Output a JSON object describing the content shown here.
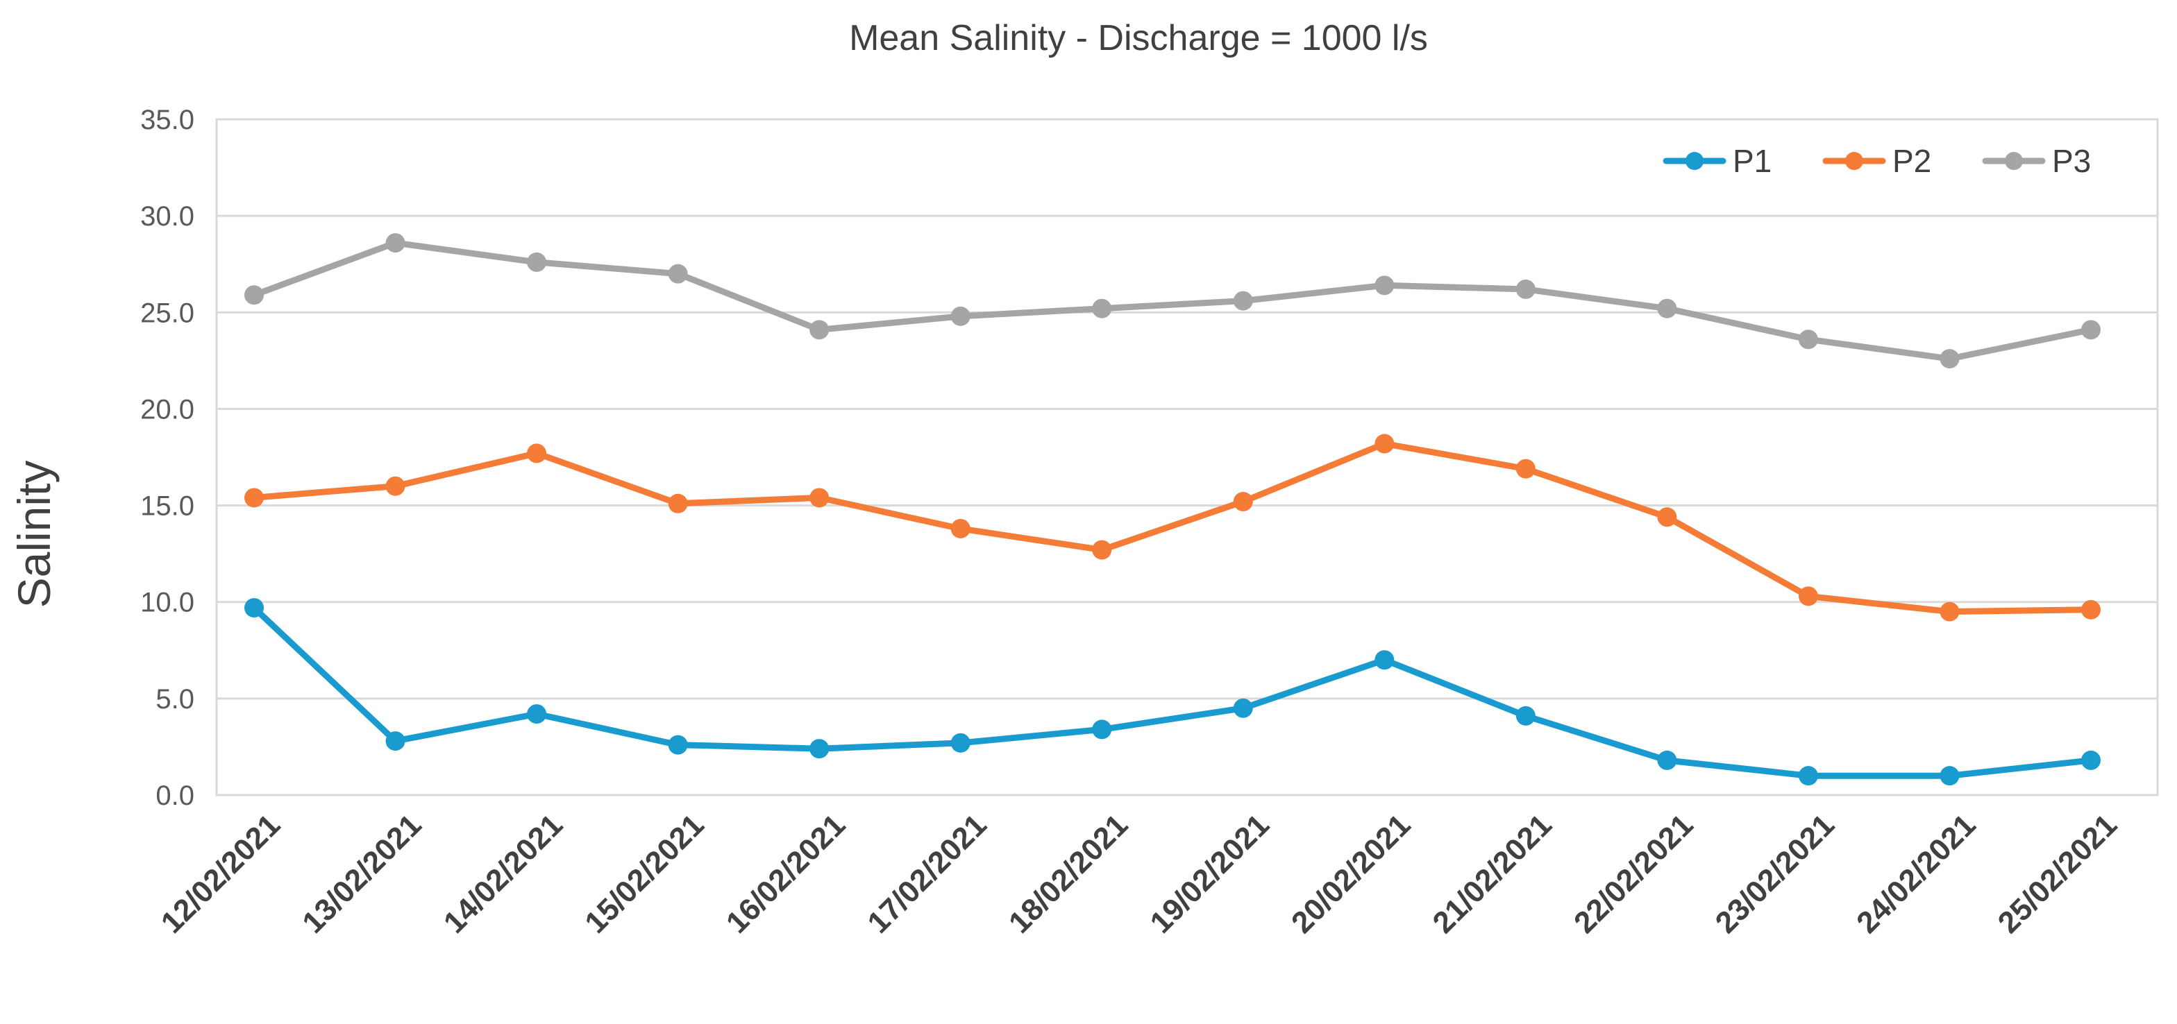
{
  "chart_data": {
    "type": "line",
    "title": "Mean Salinity - Discharge = 1000 l/s",
    "xlabel": "",
    "ylabel": "Salinity",
    "ylim": [
      0,
      35
    ],
    "yticks": [
      0,
      5,
      10,
      15,
      20,
      25,
      30,
      35
    ],
    "ytick_labels": [
      "0.0",
      "5.0",
      "10.0",
      "15.0",
      "20.0",
      "25.0",
      "30.0",
      "35.0"
    ],
    "grid": true,
    "legend_position": "top-right",
    "categories": [
      "12/02/2021",
      "13/02/2021",
      "14/02/2021",
      "15/02/2021",
      "16/02/2021",
      "17/02/2021",
      "18/02/2021",
      "19/02/2021",
      "20/02/2021",
      "21/02/2021",
      "22/02/2021",
      "23/02/2021",
      "24/02/2021",
      "25/02/2021"
    ],
    "series": [
      {
        "name": "P1",
        "color": "#1a9bd0",
        "values": [
          9.7,
          2.8,
          4.2,
          2.6,
          2.4,
          2.7,
          3.4,
          4.5,
          7.0,
          4.1,
          1.8,
          1.0,
          1.0,
          1.8
        ]
      },
      {
        "name": "P2",
        "color": "#f57c37",
        "values": [
          15.4,
          16.0,
          17.7,
          15.1,
          15.4,
          13.8,
          12.7,
          15.2,
          18.2,
          16.9,
          14.4,
          10.3,
          9.5,
          9.6
        ]
      },
      {
        "name": "P3",
        "color": "#a5a5a5",
        "values": [
          25.9,
          28.6,
          27.6,
          27.0,
          24.1,
          24.8,
          25.2,
          25.6,
          26.4,
          26.2,
          25.2,
          23.6,
          22.6,
          24.1
        ]
      }
    ]
  }
}
